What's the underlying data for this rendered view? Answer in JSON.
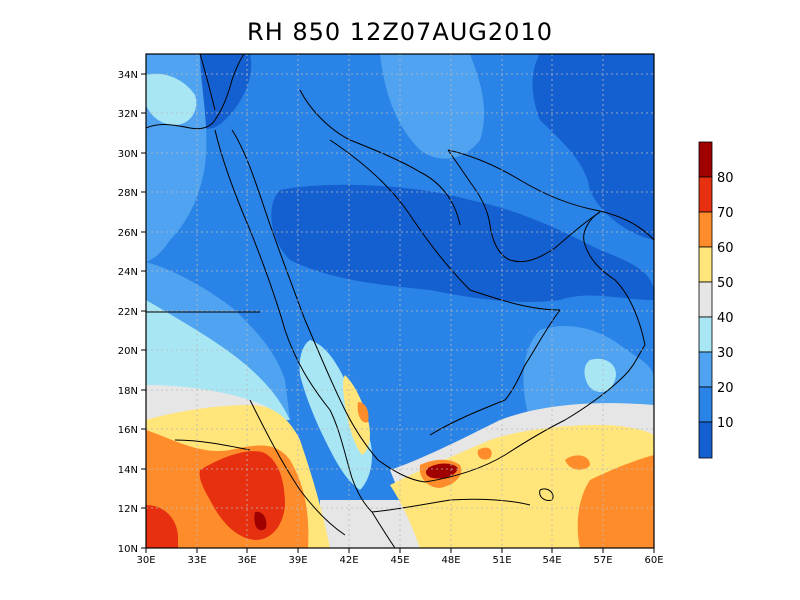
{
  "title": "RH 850 12Z07AUG2010",
  "map": {
    "lon_range": [
      30,
      60
    ],
    "lat_range": [
      10,
      35
    ],
    "lon_ticks": [
      "30E",
      "33E",
      "36E",
      "39E",
      "42E",
      "45E",
      "48E",
      "51E",
      "54E",
      "57E",
      "60E"
    ],
    "lat_ticks": [
      "10N",
      "12N",
      "14N",
      "16N",
      "18N",
      "20N",
      "22N",
      "24N",
      "26N",
      "28N",
      "30N",
      "32N",
      "34N"
    ],
    "grid": true
  },
  "colorbar": {
    "labels": [
      "10",
      "20",
      "30",
      "40",
      "50",
      "60",
      "70",
      "80"
    ],
    "colors": [
      "#1560d0",
      "#2a83e6",
      "#4fa3f0",
      "#a8e6f4",
      "#e6e6e6",
      "#ffe57a",
      "#ff8c2a",
      "#e63010",
      "#a00000"
    ]
  },
  "chart_data": {
    "type": "heatmap",
    "title": "RH 850 12Z07AUG2010",
    "variable": "RH",
    "level": "850",
    "xlim": [
      30,
      60
    ],
    "ylim": [
      10,
      35
    ],
    "levels": [
      10,
      20,
      30,
      40,
      50,
      60,
      70,
      80
    ]
  }
}
